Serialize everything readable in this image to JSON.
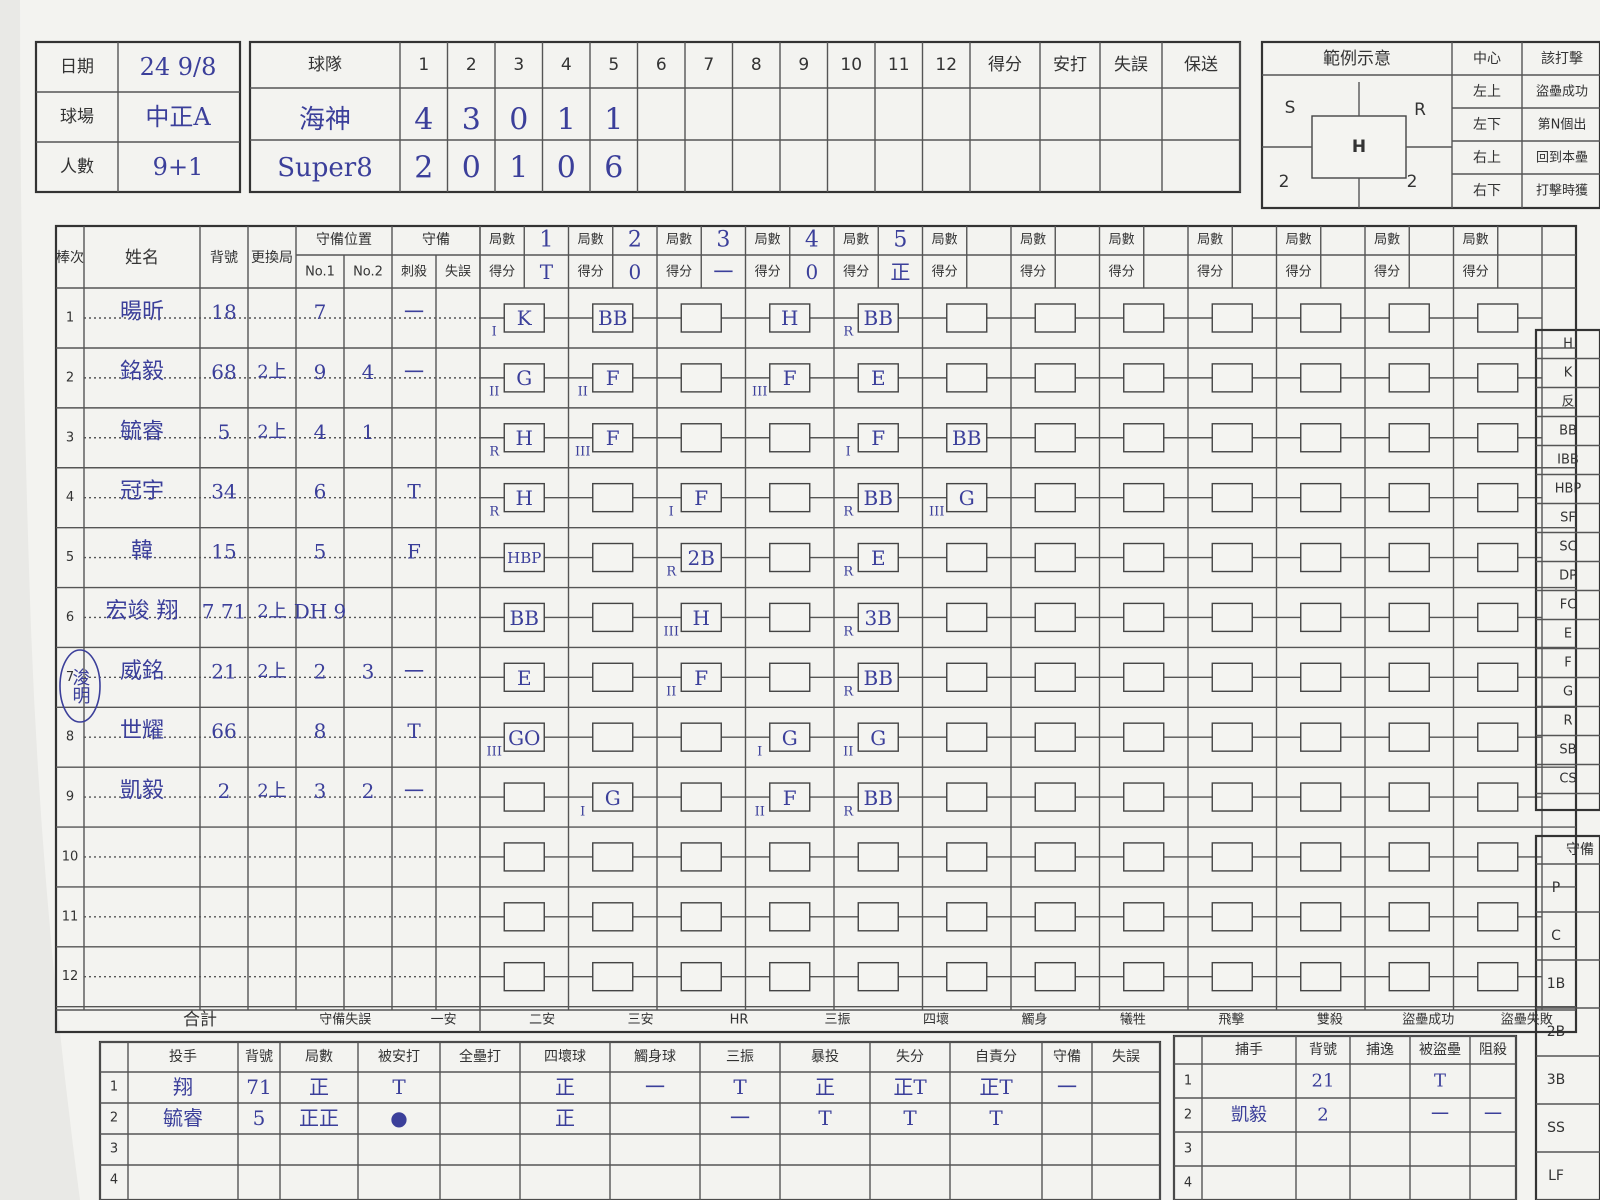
{
  "header": {
    "date_label": "日期",
    "date_value": "24 9/8",
    "field_label": "球場",
    "field_value": "中正A",
    "count_label": "人數",
    "count_value": "9+1"
  },
  "linescore": {
    "team_label": "球隊",
    "innings": [
      "1",
      "2",
      "3",
      "4",
      "5",
      "6",
      "7",
      "8",
      "9",
      "10",
      "11",
      "12"
    ],
    "totals": [
      "得分",
      "安打",
      "失誤",
      "保送"
    ],
    "teams": [
      {
        "name": "海神",
        "scores": [
          "4",
          "3",
          "0",
          "1",
          "1"
        ]
      },
      {
        "name": "Super8",
        "scores": [
          "2",
          "0",
          "1",
          "0",
          "6"
        ]
      }
    ]
  },
  "legend": {
    "title": "範例示意",
    "center_col": "中心",
    "center_val": "該打擊",
    "rows": [
      [
        "左上",
        "盜壘成功"
      ],
      [
        "左下",
        "第N個出"
      ],
      [
        "右上",
        "回到本壘"
      ],
      [
        "右下",
        "打擊時獲"
      ]
    ],
    "box": {
      "s": "S",
      "r": "R",
      "h": "H",
      "n1": "2",
      "n2": "2"
    }
  },
  "main_headers": {
    "order": "棒次",
    "name": "姓名",
    "number": "背號",
    "sub": "更換局",
    "position": "守備位置",
    "no1": "No.1",
    "no2": "No.2",
    "defense": "守備",
    "assist": "刺殺",
    "error": "失誤",
    "inning": "局數",
    "runs": "得分"
  },
  "inning_marks": [
    {
      "inning": "1",
      "runs": "T"
    },
    {
      "inning": "2",
      "runs": "0"
    },
    {
      "inning": "3",
      "runs": "一"
    },
    {
      "inning": "4",
      "runs": "0"
    },
    {
      "inning": "5",
      "runs": "正"
    }
  ],
  "players": [
    {
      "order": "1",
      "name": "暘昕",
      "number": "18",
      "sub": "",
      "pos1": "7",
      "pos2": "",
      "d1": "一",
      "d2": ""
    },
    {
      "order": "2",
      "name": "銘毅",
      "number": "68",
      "sub": "2上",
      "pos1": "9",
      "pos2": "4",
      "d1": "一",
      "d2": ""
    },
    {
      "order": "3",
      "name": "毓睿",
      "number": "5",
      "sub": "2上",
      "pos1": "4",
      "pos2": "1",
      "d1": "",
      "d2": ""
    },
    {
      "order": "4",
      "name": "冠宇",
      "number": "34",
      "sub": "",
      "pos1": "6",
      "pos2": "",
      "d1": "T",
      "d2": ""
    },
    {
      "order": "5",
      "name": "韓",
      "number": "15",
      "sub": "",
      "pos1": "5",
      "pos2": "",
      "d1": "F",
      "d2": ""
    },
    {
      "order": "6",
      "name": "宏竣 翔",
      "number": "7 71",
      "sub": "2上",
      "pos1": "DH 9",
      "pos2": "",
      "d1": "",
      "d2": ""
    },
    {
      "order": "7",
      "name": "威銘",
      "number": "21",
      "sub": "2上",
      "pos1": "2",
      "pos2": "3",
      "d1": "一",
      "d2": ""
    },
    {
      "order": "8",
      "name": "世耀",
      "number": "66",
      "sub": "",
      "pos1": "8",
      "pos2": "",
      "d1": "T",
      "d2": ""
    },
    {
      "order": "9",
      "name": "凱毅",
      "number": "2",
      "sub": "2上",
      "pos1": "3",
      "pos2": "2",
      "d1": "一",
      "d2": ""
    },
    {
      "order": "10",
      "name": "",
      "number": "",
      "sub": "",
      "pos1": "",
      "pos2": "",
      "d1": "",
      "d2": ""
    },
    {
      "order": "11",
      "name": "",
      "number": "",
      "sub": "",
      "pos1": "",
      "pos2": "",
      "d1": "",
      "d2": ""
    },
    {
      "order": "12",
      "name": "",
      "number": "",
      "sub": "",
      "pos1": "",
      "pos2": "",
      "d1": "",
      "d2": ""
    }
  ],
  "side_note": "浚明",
  "at_bats": [
    {
      "row": 1,
      "col": 1,
      "text": "K",
      "mark": "I"
    },
    {
      "row": 1,
      "col": 2,
      "text": "BB",
      "mark": ""
    },
    {
      "row": 1,
      "col": 4,
      "text": "H",
      "mark": ""
    },
    {
      "row": 1,
      "col": 5,
      "text": "BB",
      "mark": "R"
    },
    {
      "row": 2,
      "col": 1,
      "text": "G",
      "mark": "II"
    },
    {
      "row": 2,
      "col": 2,
      "text": "F",
      "mark": "II"
    },
    {
      "row": 2,
      "col": 4,
      "text": "F",
      "mark": "III"
    },
    {
      "row": 2,
      "col": 5,
      "text": "E",
      "mark": ""
    },
    {
      "row": 3,
      "col": 1,
      "text": "H",
      "mark": "R"
    },
    {
      "row": 3,
      "col": 2,
      "text": "F",
      "mark": "III"
    },
    {
      "row": 3,
      "col": 5,
      "text": "F",
      "mark": "I"
    },
    {
      "row": 3,
      "col": 6,
      "text": "BB",
      "mark": ""
    },
    {
      "row": 4,
      "col": 1,
      "text": "H",
      "mark": "R"
    },
    {
      "row": 4,
      "col": 3,
      "text": "F",
      "mark": "I"
    },
    {
      "row": 4,
      "col": 5,
      "text": "BB",
      "mark": "R"
    },
    {
      "row": 4,
      "col": 6,
      "text": "G",
      "mark": "III"
    },
    {
      "row": 5,
      "col": 1,
      "text": "HBP",
      "mark": ""
    },
    {
      "row": 5,
      "col": 3,
      "text": "2B",
      "mark": "R"
    },
    {
      "row": 5,
      "col": 5,
      "text": "E",
      "mark": "R"
    },
    {
      "row": 6,
      "col": 1,
      "text": "BB",
      "mark": ""
    },
    {
      "row": 6,
      "col": 3,
      "text": "H",
      "mark": "III"
    },
    {
      "row": 6,
      "col": 5,
      "text": "3B",
      "mark": "R"
    },
    {
      "row": 7,
      "col": 1,
      "text": "E",
      "mark": ""
    },
    {
      "row": 7,
      "col": 3,
      "text": "F",
      "mark": "II"
    },
    {
      "row": 7,
      "col": 5,
      "text": "BB",
      "mark": "R"
    },
    {
      "row": 8,
      "col": 1,
      "text": "GO",
      "mark": "III"
    },
    {
      "row": 8,
      "col": 4,
      "text": "G",
      "mark": "I"
    },
    {
      "row": 8,
      "col": 5,
      "text": "G",
      "mark": "II"
    },
    {
      "row": 9,
      "col": 2,
      "text": "G",
      "mark": "I"
    },
    {
      "row": 9,
      "col": 4,
      "text": "F",
      "mark": "II"
    },
    {
      "row": 9,
      "col": 5,
      "text": "BB",
      "mark": "R"
    }
  ],
  "totals_row": {
    "label": "合計",
    "cols": [
      "守備失誤",
      "一安",
      "二安",
      "三安",
      "HR",
      "三振",
      "四壞",
      "觸身",
      "犧牲",
      "飛擊",
      "雙殺",
      "盜壘成功",
      "盜壘失敗"
    ]
  },
  "pitchers": {
    "headers": [
      "投手",
      "背號",
      "局數",
      "被安打",
      "全壘打",
      "四壞球",
      "觸身球",
      "三振",
      "暴投",
      "失分",
      "自責分",
      "守備",
      "失誤"
    ],
    "rows": [
      {
        "n": "1",
        "name": "翔",
        "num": "71",
        "ip": "正",
        "h": "T",
        "hr": "",
        "bb": "正",
        "hbp": "一",
        "so": "T",
        "wp": "正",
        "r": "正T",
        "er": "正T",
        "d": "一",
        "e": ""
      },
      {
        "n": "2",
        "name": "毓睿",
        "num": "5",
        "ip": "正正",
        "h": "●",
        "hr": "",
        "bb": "正",
        "hbp": "",
        "so": "一",
        "wp": "T",
        "r": "T",
        "er": "T",
        "d": "",
        "e": ""
      },
      {
        "n": "3",
        "name": "",
        "num": "",
        "ip": "",
        "h": "",
        "hr": "",
        "bb": "",
        "hbp": "",
        "so": "",
        "wp": "",
        "r": "",
        "er": "",
        "d": "",
        "e": ""
      },
      {
        "n": "4",
        "name": "",
        "num": "",
        "ip": "",
        "h": "",
        "hr": "",
        "bb": "",
        "hbp": "",
        "so": "",
        "wp": "",
        "r": "",
        "er": "",
        "d": "",
        "e": ""
      }
    ]
  },
  "catchers": {
    "headers": [
      "捕手",
      "背號",
      "捕逸",
      "被盜壘",
      "阻殺"
    ],
    "rows": [
      {
        "n": "1",
        "name": "",
        "num": "21",
        "pb": "",
        "sb": "T",
        "cs": ""
      },
      {
        "n": "2",
        "name": "凱毅",
        "num": "2",
        "pb": "",
        "sb": "一",
        "cs": "一"
      },
      {
        "n": "3",
        "name": "",
        "num": "",
        "pb": "",
        "sb": "",
        "cs": ""
      },
      {
        "n": "4",
        "name": "",
        "num": "",
        "pb": "",
        "sb": "",
        "cs": ""
      }
    ]
  },
  "right_abbrev": [
    "H",
    "K",
    "反",
    "BB",
    "IBB",
    "HBP",
    "SF",
    "SC",
    "DP",
    "FC",
    "E",
    "F",
    "G",
    "R",
    "SB",
    "CS"
  ],
  "defense_panel": {
    "title": "守備",
    "positions": [
      "P",
      "C",
      "1B",
      "2B",
      "3B",
      "SS",
      "LF"
    ]
  }
}
